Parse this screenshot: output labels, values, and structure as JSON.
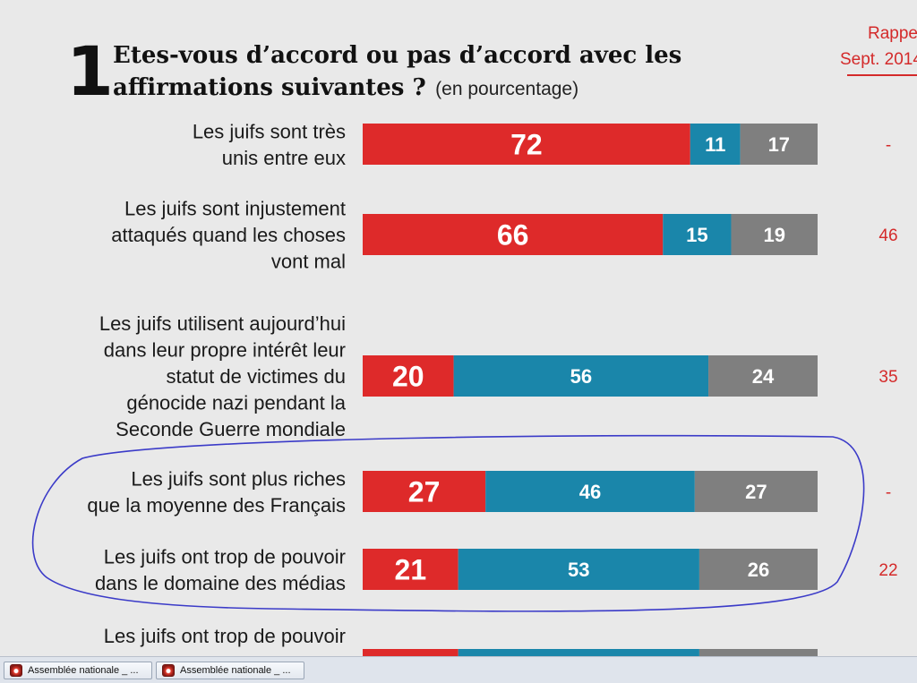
{
  "question": {
    "number": "1",
    "title_line1": "Etes-vous d’accord ou pas d’accord avec les",
    "title_line2": "affirmations suivantes ?",
    "subtitle": "(en pourcentage)"
  },
  "rappel_header": {
    "line1": "Rappe",
    "line2": "Sept. 2014"
  },
  "colors": {
    "agree": "#de2a2a",
    "disagree": "#1a86aa",
    "no_answer": "#7f7f7f",
    "rappel": "#d42a2a",
    "highlight": "#3b3bc8"
  },
  "chart_data": {
    "type": "bar",
    "orientation": "horizontal",
    "stacked": true,
    "title": "Etes-vous d’accord ou pas d’accord avec les affirmations suivantes ? (en pourcentage)",
    "xlim": [
      0,
      100
    ],
    "rows": [
      {
        "label_lines": [
          "Les juifs sont très",
          "unis entre eux"
        ],
        "values": [
          72,
          11,
          17
        ],
        "rappel": "-"
      },
      {
        "label_lines": [
          "Les juifs sont injustement",
          "attaqués quand les choses",
          "vont mal"
        ],
        "values": [
          66,
          15,
          19
        ],
        "rappel": "46"
      },
      {
        "label_lines": [
          "Les juifs utilisent aujourd’hui",
          "dans leur propre intérêt leur",
          "statut de victimes du",
          "génocide nazi pendant la",
          "Seconde Guerre mondiale"
        ],
        "values": [
          20,
          56,
          24
        ],
        "rappel": "35"
      },
      {
        "label_lines": [
          "Les juifs sont plus riches",
          "que la moyenne des Français"
        ],
        "values": [
          27,
          46,
          27
        ],
        "rappel": "-"
      },
      {
        "label_lines": [
          "Les juifs ont trop de pouvoir",
          "dans le domaine des médias"
        ],
        "values": [
          21,
          53,
          26
        ],
        "rappel": "22"
      },
      {
        "label_lines": [
          "Les juifs ont trop de pouvoir"
        ],
        "values": [
          21,
          53,
          26
        ],
        "rappel": "",
        "partial": true
      }
    ]
  },
  "taskbar": {
    "items": [
      {
        "label": "Assemblée nationale _ ..."
      },
      {
        "label": "Assemblée nationale _ ..."
      }
    ]
  }
}
